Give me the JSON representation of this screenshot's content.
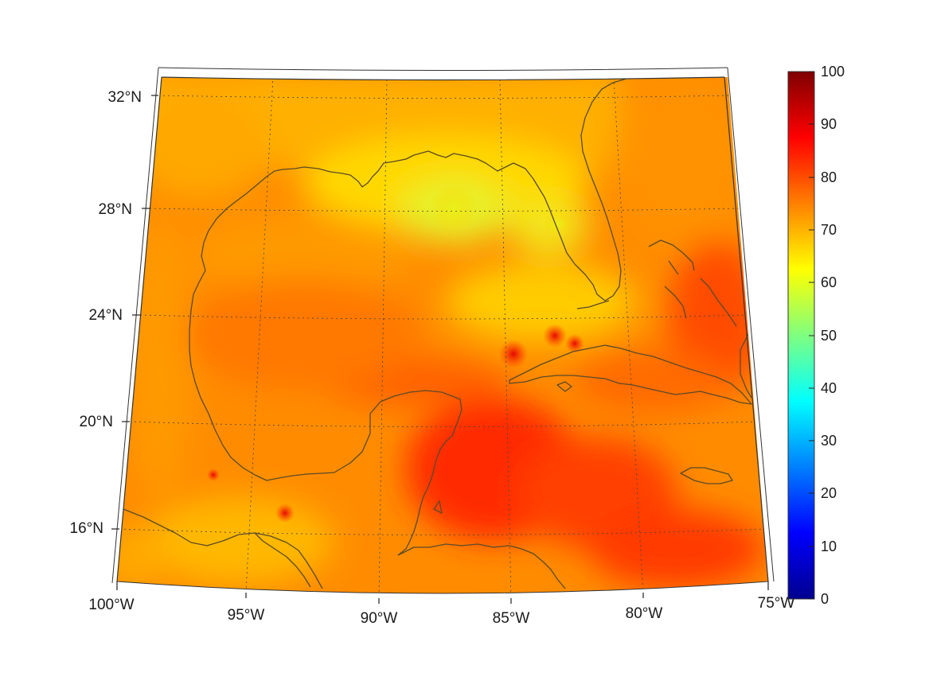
{
  "map": {
    "projection": "conic",
    "lon_range": [
      -100,
      -75
    ],
    "lat_range": [
      14,
      33
    ],
    "grid": true,
    "coastline_color": "#5a4a2a",
    "lon_ticks": [
      {
        "value": -100,
        "label": "100°W"
      },
      {
        "value": -95,
        "label": "95°W"
      },
      {
        "value": -90,
        "label": "90°W"
      },
      {
        "value": -85,
        "label": "85°W"
      },
      {
        "value": -80,
        "label": "80°W"
      },
      {
        "value": -75,
        "label": "75°W"
      }
    ],
    "lat_ticks": [
      {
        "value": 32,
        "label": "32°N"
      },
      {
        "value": 28,
        "label": "28°N"
      },
      {
        "value": 24,
        "label": "24°N"
      },
      {
        "value": 20,
        "label": "20°N"
      },
      {
        "value": 16,
        "label": "16°N"
      }
    ]
  },
  "colorbar": {
    "colormap": "jet",
    "range": [
      0,
      100
    ],
    "placement": "right",
    "ticks": [
      "100",
      "90",
      "80",
      "70",
      "60",
      "50",
      "40",
      "30",
      "20",
      "10",
      "0"
    ]
  },
  "field": {
    "background_value": 75,
    "high_values": [
      {
        "lon": -84.8,
        "lat": 22.5,
        "value": 86
      },
      {
        "lon": -83.5,
        "lat": 23.2,
        "value": 84
      },
      {
        "lon": -93.5,
        "lat": 16.5,
        "value": 88
      },
      {
        "lon": -85.5,
        "lat": 18.5,
        "value": 85
      },
      {
        "lon": -83.0,
        "lat": 16.5,
        "value": 84
      }
    ],
    "low_values": [
      {
        "lon": -87.0,
        "lat": 28.0,
        "value": 62
      },
      {
        "lon": -84.0,
        "lat": 27.5,
        "value": 64
      },
      {
        "lon": -94.0,
        "lat": 15.0,
        "value": 66
      }
    ]
  }
}
